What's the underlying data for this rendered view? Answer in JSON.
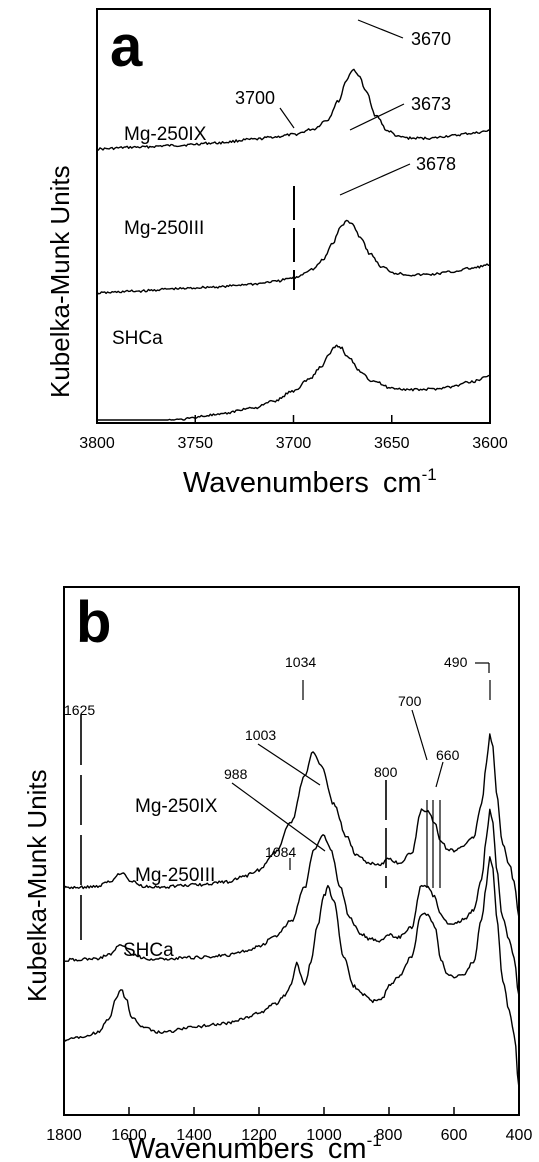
{
  "chart_data": [
    {
      "panel": "a",
      "type": "line",
      "xlabel": "Wavenumbers",
      "xlabel_unit": "cm",
      "xlabel_exp": "-1",
      "ylabel": "Kubelka-Munk Units",
      "xlim": [
        3800,
        3600
      ],
      "x_ticks": [
        3800,
        3750,
        3700,
        3650,
        3600
      ],
      "y_ticks": false,
      "grid": false,
      "series": [
        {
          "name": "Mg-250IX",
          "x": [
            3800,
            3780,
            3760,
            3740,
            3720,
            3710,
            3700,
            3690,
            3683,
            3677,
            3673,
            3670,
            3667,
            3663,
            3658,
            3652,
            3646,
            3640,
            3630,
            3620,
            3610,
            3600
          ],
          "y": [
            0.6,
            0.63,
            0.66,
            0.7,
            0.76,
            0.8,
            0.84,
            0.93,
            1.08,
            1.4,
            1.75,
            1.92,
            1.84,
            1.55,
            1.15,
            0.9,
            0.8,
            0.78,
            0.78,
            0.82,
            0.86,
            0.9
          ]
        },
        {
          "name": "Mg-250III",
          "x": [
            3800,
            3780,
            3760,
            3740,
            3720,
            3710,
            3700,
            3690,
            3685,
            3680,
            3676,
            3673,
            3670,
            3666,
            3661,
            3655,
            3648,
            3640,
            3630,
            3620,
            3610,
            3600
          ],
          "y": [
            -0.05,
            -0.02,
            0.02,
            0.05,
            0.1,
            0.14,
            0.2,
            0.35,
            0.5,
            0.78,
            1.05,
            1.15,
            1.1,
            0.88,
            0.6,
            0.38,
            0.28,
            0.25,
            0.26,
            0.3,
            0.36,
            0.42
          ]
        },
        {
          "name": "SHCa",
          "x": [
            3800,
            3780,
            3760,
            3740,
            3720,
            3710,
            3700,
            3692,
            3686,
            3682,
            3679,
            3678,
            3676,
            3672,
            3666,
            3660,
            3650,
            3640,
            3630,
            3620,
            3610,
            3600
          ],
          "y": [
            -1.15,
            -1.1,
            -1.03,
            -0.95,
            -0.83,
            -0.72,
            -0.55,
            -0.35,
            -0.15,
            0.05,
            0.18,
            0.2,
            0.18,
            0.0,
            -0.22,
            -0.38,
            -0.5,
            -0.53,
            -0.52,
            -0.48,
            -0.4,
            -0.3
          ]
        }
      ],
      "annotations": [
        "3700",
        "3670",
        "3673",
        "3678"
      ]
    },
    {
      "panel": "b",
      "type": "line",
      "xlabel": "Wavenumbers",
      "xlabel_unit": "cm",
      "xlabel_exp": "-1",
      "ylabel": "Kubelka-Munk Units",
      "xlim": [
        1800,
        400
      ],
      "x_ticks": [
        1800,
        1600,
        1400,
        1200,
        1000,
        800,
        600,
        400
      ],
      "y_ticks": false,
      "grid": false,
      "series": [
        {
          "name": "Mg-250IX",
          "x": [
            1800,
            1700,
            1660,
            1625,
            1590,
            1550,
            1500,
            1400,
            1300,
            1250,
            1200,
            1150,
            1100,
            1060,
            1034,
            1010,
            970,
            930,
            900,
            860,
            830,
            800,
            770,
            730,
            700,
            680,
            660,
            640,
            620,
            600,
            570,
            540,
            515,
            500,
            490,
            480,
            470,
            450,
            430,
            415,
            400
          ],
          "y": [
            0.0,
            0.02,
            0.1,
            0.25,
            0.1,
            0.02,
            0.02,
            0.05,
            0.1,
            0.18,
            0.3,
            0.6,
            1.1,
            1.85,
            2.25,
            2.05,
            1.4,
            0.85,
            0.55,
            0.42,
            0.38,
            0.48,
            0.42,
            0.58,
            1.3,
            1.28,
            1.1,
            0.78,
            0.65,
            0.62,
            0.7,
            0.85,
            1.4,
            2.1,
            2.55,
            2.35,
            1.6,
            0.75,
            0.4,
            0.1,
            -0.5
          ]
        },
        {
          "name": "Mg-250III",
          "x": [
            1800,
            1700,
            1660,
            1625,
            1590,
            1550,
            1500,
            1400,
            1300,
            1250,
            1200,
            1150,
            1100,
            1060,
            1030,
            1003,
            980,
            950,
            920,
            890,
            860,
            830,
            800,
            770,
            730,
            700,
            680,
            660,
            640,
            620,
            600,
            570,
            540,
            515,
            500,
            490,
            480,
            470,
            450,
            430,
            415,
            400
          ],
          "y": [
            0.0,
            0.02,
            0.1,
            0.25,
            0.1,
            0.02,
            0.02,
            0.04,
            0.08,
            0.14,
            0.22,
            0.4,
            0.65,
            1.2,
            1.85,
            2.1,
            1.85,
            1.2,
            0.7,
            0.45,
            0.35,
            0.32,
            0.42,
            0.38,
            0.55,
            1.25,
            1.22,
            1.05,
            0.75,
            0.62,
            0.6,
            0.68,
            0.82,
            1.35,
            2.05,
            2.5,
            2.3,
            1.55,
            0.7,
            0.35,
            0.05,
            -0.6
          ]
        },
        {
          "name": "SHCa",
          "x": [
            1800,
            1750,
            1700,
            1660,
            1640,
            1625,
            1610,
            1590,
            1550,
            1500,
            1400,
            1300,
            1250,
            1200,
            1150,
            1120,
            1100,
            1084,
            1070,
            1060,
            1040,
            1020,
            1000,
            988,
            970,
            940,
            910,
            880,
            850,
            820,
            800,
            770,
            730,
            700,
            680,
            660,
            640,
            620,
            600,
            570,
            540,
            515,
            500,
            490,
            480,
            470,
            450,
            430,
            415,
            400
          ],
          "y": [
            0.0,
            0.05,
            0.12,
            0.35,
            0.7,
            0.85,
            0.7,
            0.35,
            0.2,
            0.12,
            0.22,
            0.28,
            0.35,
            0.45,
            0.6,
            0.75,
            0.95,
            1.3,
            1.05,
            0.9,
            1.3,
            1.9,
            2.4,
            2.55,
            2.3,
            1.4,
            0.9,
            0.75,
            0.65,
            0.7,
            0.9,
            1.05,
            1.4,
            2.1,
            2.1,
            1.9,
            1.35,
            1.1,
            1.05,
            1.1,
            1.3,
            2.0,
            2.6,
            3.05,
            2.85,
            2.1,
            1.0,
            0.5,
            0.1,
            -0.8
          ]
        }
      ],
      "annotations": [
        "1625",
        "1084",
        "1034",
        "1003",
        "988",
        "800",
        "700",
        "660",
        "490"
      ]
    }
  ]
}
